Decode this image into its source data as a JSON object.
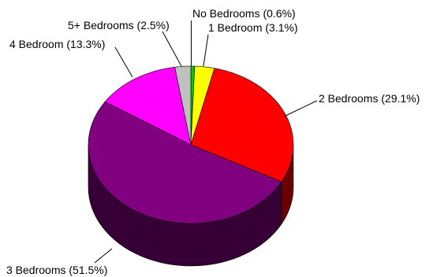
{
  "chart_data": {
    "type": "pie",
    "three_d": true,
    "legend": "none",
    "slices": [
      {
        "label": "No Bedrooms (0.6%)",
        "value": 0.6,
        "color": "#00cc00"
      },
      {
        "label": "1 Bedroom (3.1%)",
        "value": 3.1,
        "color": "#ffff00"
      },
      {
        "label": "2 Bedrooms (29.1%)",
        "value": 29.1,
        "color": "#ff0000"
      },
      {
        "label": "3 Bedrooms (51.5%)",
        "value": 51.5,
        "color": "#800080"
      },
      {
        "label": "4 Bedroom (13.3%)",
        "value": 13.3,
        "color": "#ff00ff"
      },
      {
        "label": "5+ Bedrooms (2.5%)",
        "value": 2.5,
        "color": "#c0c0c0"
      }
    ]
  }
}
